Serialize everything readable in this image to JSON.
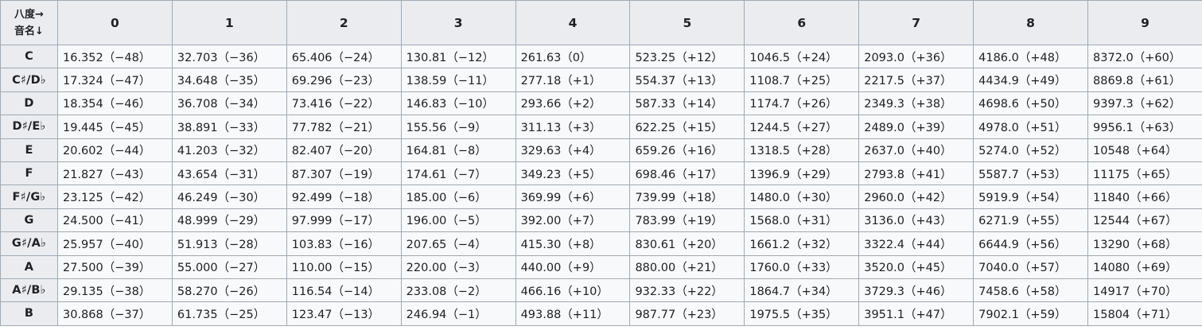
{
  "table": {
    "corner_label_line1": "八度→",
    "corner_label_line2": "音名↓",
    "octaves": [
      "0",
      "1",
      "2",
      "3",
      "4",
      "5",
      "6",
      "7",
      "8",
      "9"
    ],
    "rows": [
      {
        "note": "C",
        "cells": [
          "16.352（−48）",
          "32.703（−36）",
          "65.406（−24）",
          "130.81（−12）",
          "261.63（0）",
          "523.25（+12）",
          "1046.5（+24）",
          "2093.0（+36）",
          "4186.0（+48）",
          "8372.0（+60）"
        ]
      },
      {
        "note": "C♯/D♭",
        "cells": [
          "17.324（−47）",
          "34.648（−35）",
          "69.296（−23）",
          "138.59（−11）",
          "277.18（+1）",
          "554.37（+13）",
          "1108.7（+25）",
          "2217.5（+37）",
          "4434.9（+49）",
          "8869.8（+61）"
        ]
      },
      {
        "note": "D",
        "cells": [
          "18.354（−46）",
          "36.708（−34）",
          "73.416（−22）",
          "146.83（−10）",
          "293.66（+2）",
          "587.33（+14）",
          "1174.7（+26）",
          "2349.3（+38）",
          "4698.6（+50）",
          "9397.3（+62）"
        ]
      },
      {
        "note": "D♯/E♭",
        "cells": [
          "19.445（−45）",
          "38.891（−33）",
          "77.782（−21）",
          "155.56（−9）",
          "311.13（+3）",
          "622.25（+15）",
          "1244.5（+27）",
          "2489.0（+39）",
          "4978.0（+51）",
          "9956.1（+63）"
        ]
      },
      {
        "note": "E",
        "cells": [
          "20.602（−44）",
          "41.203（−32）",
          "82.407（−20）",
          "164.81（−8）",
          "329.63（+4）",
          "659.26（+16）",
          "1318.5（+28）",
          "2637.0（+40）",
          "5274.0（+52）",
          "10548（+64）"
        ]
      },
      {
        "note": "F",
        "cells": [
          "21.827（−43）",
          "43.654（−31）",
          "87.307（−19）",
          "174.61（−7）",
          "349.23（+5）",
          "698.46（+17）",
          "1396.9（+29）",
          "2793.8（+41）",
          "5587.7（+53）",
          "11175（+65）"
        ]
      },
      {
        "note": "F♯/G♭",
        "cells": [
          "23.125（−42）",
          "46.249（−30）",
          "92.499（−18）",
          "185.00（−6）",
          "369.99（+6）",
          "739.99（+18）",
          "1480.0（+30）",
          "2960.0（+42）",
          "5919.9（+54）",
          "11840（+66）"
        ]
      },
      {
        "note": "G",
        "cells": [
          "24.500（−41）",
          "48.999（−29）",
          "97.999（−17）",
          "196.00（−5）",
          "392.00（+7）",
          "783.99（+19）",
          "1568.0（+31）",
          "3136.0（+43）",
          "6271.9（+55）",
          "12544（+67）"
        ]
      },
      {
        "note": "G♯/A♭",
        "cells": [
          "25.957（−40）",
          "51.913（−28）",
          "103.83（−16）",
          "207.65（−4）",
          "415.30（+8）",
          "830.61（+20）",
          "1661.2（+32）",
          "3322.4（+44）",
          "6644.9（+56）",
          "13290（+68）"
        ]
      },
      {
        "note": "A",
        "cells": [
          "27.500（−39）",
          "55.000（−27）",
          "110.00（−15）",
          "220.00（−3）",
          "440.00（+9）",
          "880.00（+21）",
          "1760.0（+33）",
          "3520.0（+45）",
          "7040.0（+57）",
          "14080（+69）"
        ]
      },
      {
        "note": "A♯/B♭",
        "cells": [
          "29.135（−38）",
          "58.270（−26）",
          "116.54（−14）",
          "233.08（−2）",
          "466.16（+10）",
          "932.33（+22）",
          "1864.7（+34）",
          "3729.3（+46）",
          "7458.6（+58）",
          "14917（+70）"
        ]
      },
      {
        "note": "B",
        "cells": [
          "30.868（−37）",
          "61.735（−25）",
          "123.47（−13）",
          "246.94（−1）",
          "493.88（+11）",
          "987.77（+23）",
          "1975.5（+35）",
          "3951.1（+47）",
          "7902.1（+59）",
          "15804（+71）"
        ]
      }
    ]
  },
  "colors": {
    "header_bg": "#eaecf0",
    "cell_bg": "#f8f9fa",
    "border": "#a2a9b1",
    "text": "#202122"
  }
}
